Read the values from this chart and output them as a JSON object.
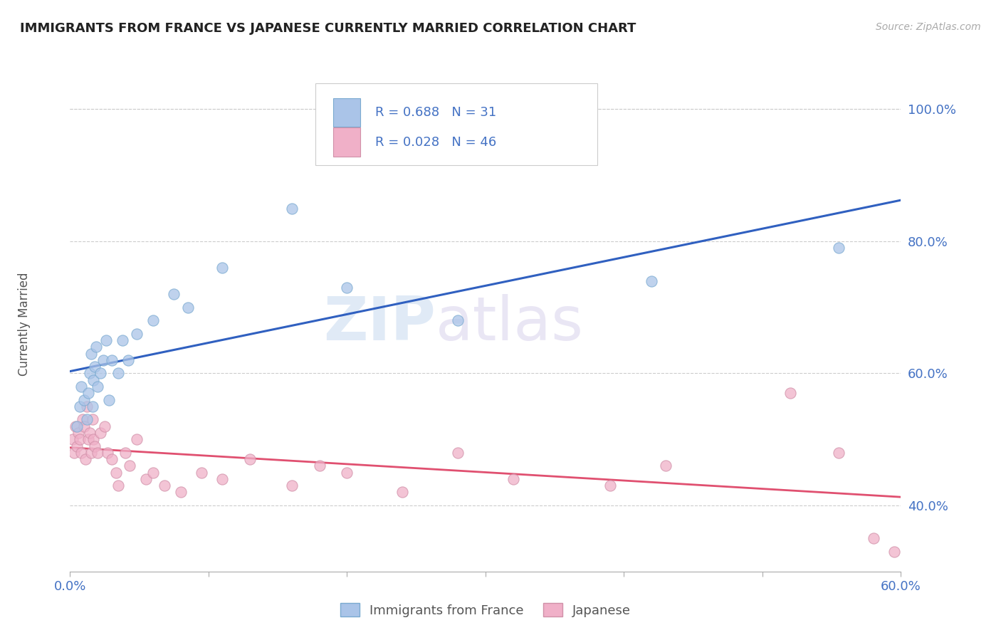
{
  "title": "IMMIGRANTS FROM FRANCE VS JAPANESE CURRENTLY MARRIED CORRELATION CHART",
  "source_text": "Source: ZipAtlas.com",
  "ylabel": "Currently Married",
  "watermark": "ZIPatlas",
  "xlim": [
    0.0,
    0.6
  ],
  "ylim": [
    0.3,
    1.05
  ],
  "xticks": [
    0.0,
    0.1,
    0.2,
    0.3,
    0.4,
    0.5,
    0.6
  ],
  "xticklabels": [
    "0.0%",
    "",
    "",
    "",
    "",
    "",
    "60.0%"
  ],
  "yticks": [
    0.4,
    0.6,
    0.8,
    1.0
  ],
  "yticklabels": [
    "40.0%",
    "60.0%",
    "80.0%",
    "100.0%"
  ],
  "legend_entries": [
    {
      "label": "Immigrants from France",
      "R": "0.688",
      "N": "31",
      "color": "#aac4e8",
      "edge": "#7aaad0"
    },
    {
      "label": "Japanese",
      "R": "0.028",
      "N": "46",
      "color": "#f0b0c8",
      "edge": "#d090a8"
    }
  ],
  "blue_scatter_x": [
    0.005,
    0.007,
    0.008,
    0.01,
    0.012,
    0.013,
    0.014,
    0.015,
    0.016,
    0.017,
    0.018,
    0.019,
    0.02,
    0.022,
    0.024,
    0.026,
    0.028,
    0.03,
    0.035,
    0.038,
    0.042,
    0.048,
    0.06,
    0.075,
    0.085,
    0.11,
    0.16,
    0.2,
    0.28,
    0.42,
    0.555
  ],
  "blue_scatter_y": [
    0.52,
    0.55,
    0.58,
    0.56,
    0.53,
    0.57,
    0.6,
    0.63,
    0.55,
    0.59,
    0.61,
    0.64,
    0.58,
    0.6,
    0.62,
    0.65,
    0.56,
    0.62,
    0.6,
    0.65,
    0.62,
    0.66,
    0.68,
    0.72,
    0.7,
    0.76,
    0.85,
    0.73,
    0.68,
    0.74,
    0.79
  ],
  "pink_scatter_x": [
    0.002,
    0.003,
    0.004,
    0.005,
    0.006,
    0.007,
    0.008,
    0.009,
    0.01,
    0.011,
    0.012,
    0.013,
    0.014,
    0.015,
    0.016,
    0.017,
    0.018,
    0.02,
    0.022,
    0.025,
    0.027,
    0.03,
    0.033,
    0.035,
    0.04,
    0.043,
    0.048,
    0.055,
    0.06,
    0.068,
    0.08,
    0.095,
    0.11,
    0.13,
    0.16,
    0.18,
    0.2,
    0.24,
    0.28,
    0.32,
    0.39,
    0.43,
    0.52,
    0.555,
    0.58,
    0.595
  ],
  "pink_scatter_y": [
    0.5,
    0.48,
    0.52,
    0.49,
    0.51,
    0.5,
    0.48,
    0.53,
    0.52,
    0.47,
    0.55,
    0.5,
    0.51,
    0.48,
    0.53,
    0.5,
    0.49,
    0.48,
    0.51,
    0.52,
    0.48,
    0.47,
    0.45,
    0.43,
    0.48,
    0.46,
    0.5,
    0.44,
    0.45,
    0.43,
    0.42,
    0.45,
    0.44,
    0.47,
    0.43,
    0.46,
    0.45,
    0.42,
    0.48,
    0.44,
    0.43,
    0.46,
    0.57,
    0.48,
    0.35,
    0.33
  ],
  "blue_line_color": "#3060c0",
  "pink_line_color": "#e05070",
  "grid_color": "#cccccc",
  "title_color": "#222222",
  "tick_color": "#4472c4",
  "ylabel_color": "#555555",
  "background_color": "#ffffff"
}
